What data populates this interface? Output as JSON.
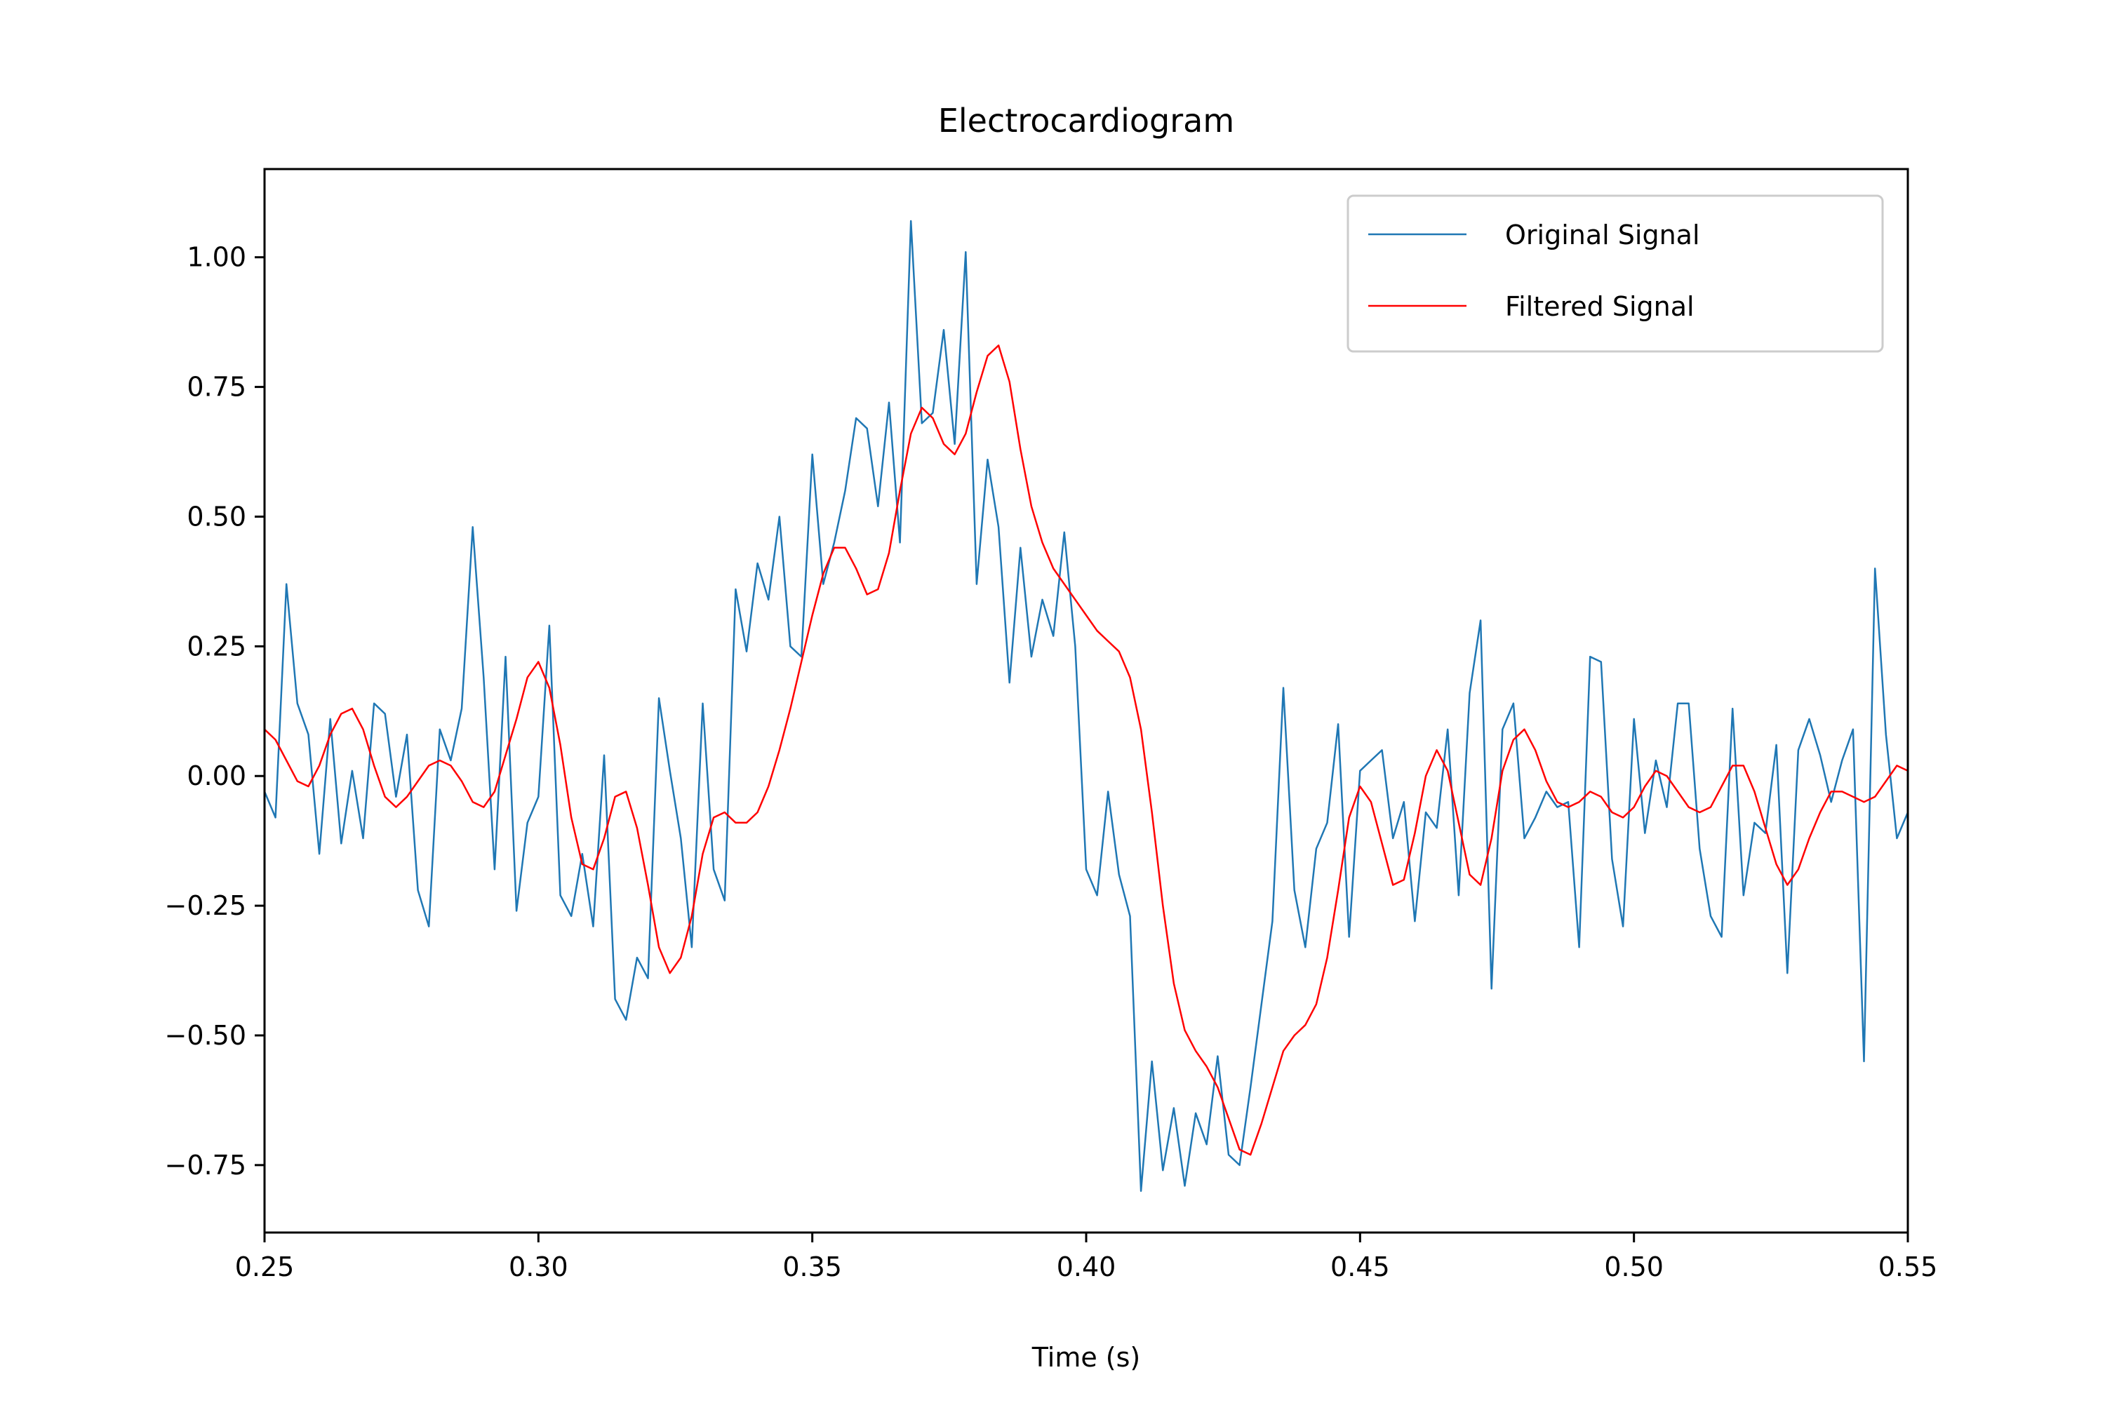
{
  "chart_data": {
    "type": "line",
    "title": "Electrocardiogram",
    "xlabel": "Time (s)",
    "ylabel": "",
    "xlim": [
      0.25,
      0.55
    ],
    "ylim": [
      -0.88,
      1.17
    ],
    "x_ticks": [
      0.25,
      0.3,
      0.35,
      0.4,
      0.45,
      0.5,
      0.55
    ],
    "x_tick_labels": [
      "0.25",
      "0.30",
      "0.35",
      "0.40",
      "0.45",
      "0.50",
      "0.55"
    ],
    "y_ticks": [
      1.0,
      0.75,
      0.5,
      0.25,
      0.0,
      -0.25,
      -0.5,
      -0.75
    ],
    "y_tick_labels": [
      "1.00",
      "0.75",
      "0.50",
      "0.25",
      "0.00",
      "−0.25",
      "−0.50",
      "−0.75"
    ],
    "grid": false,
    "legend_position": "top-right",
    "series": [
      {
        "name": "Original Signal",
        "color": "#1f77b4",
        "points": [
          [
            0.25,
            -0.03
          ],
          [
            0.252,
            -0.08
          ],
          [
            0.254,
            0.37
          ],
          [
            0.256,
            0.14
          ],
          [
            0.258,
            0.08
          ],
          [
            0.26,
            -0.15
          ],
          [
            0.262,
            0.11
          ],
          [
            0.264,
            -0.13
          ],
          [
            0.266,
            0.01
          ],
          [
            0.268,
            -0.12
          ],
          [
            0.27,
            0.14
          ],
          [
            0.272,
            0.12
          ],
          [
            0.274,
            -0.04
          ],
          [
            0.276,
            0.08
          ],
          [
            0.278,
            -0.22
          ],
          [
            0.28,
            -0.29
          ],
          [
            0.282,
            0.09
          ],
          [
            0.284,
            0.03
          ],
          [
            0.286,
            0.13
          ],
          [
            0.288,
            0.48
          ],
          [
            0.29,
            0.19
          ],
          [
            0.292,
            -0.18
          ],
          [
            0.294,
            0.23
          ],
          [
            0.296,
            -0.26
          ],
          [
            0.298,
            -0.09
          ],
          [
            0.3,
            -0.04
          ],
          [
            0.302,
            0.29
          ],
          [
            0.304,
            -0.23
          ],
          [
            0.306,
            -0.27
          ],
          [
            0.308,
            -0.15
          ],
          [
            0.31,
            -0.29
          ],
          [
            0.312,
            0.04
          ],
          [
            0.314,
            -0.43
          ],
          [
            0.316,
            -0.47
          ],
          [
            0.318,
            -0.35
          ],
          [
            0.32,
            -0.39
          ],
          [
            0.322,
            0.15
          ],
          [
            0.324,
            0.01
          ],
          [
            0.326,
            -0.12
          ],
          [
            0.328,
            -0.33
          ],
          [
            0.33,
            0.14
          ],
          [
            0.332,
            -0.18
          ],
          [
            0.334,
            -0.24
          ],
          [
            0.336,
            0.36
          ],
          [
            0.338,
            0.24
          ],
          [
            0.34,
            0.41
          ],
          [
            0.342,
            0.34
          ],
          [
            0.344,
            0.5
          ],
          [
            0.346,
            0.25
          ],
          [
            0.348,
            0.23
          ],
          [
            0.35,
            0.62
          ],
          [
            0.352,
            0.37
          ],
          [
            0.354,
            0.45
          ],
          [
            0.356,
            0.55
          ],
          [
            0.358,
            0.69
          ],
          [
            0.36,
            0.67
          ],
          [
            0.362,
            0.52
          ],
          [
            0.364,
            0.72
          ],
          [
            0.366,
            0.45
          ],
          [
            0.368,
            1.07
          ],
          [
            0.37,
            0.68
          ],
          [
            0.372,
            0.7
          ],
          [
            0.374,
            0.86
          ],
          [
            0.376,
            0.64
          ],
          [
            0.378,
            1.01
          ],
          [
            0.38,
            0.37
          ],
          [
            0.382,
            0.61
          ],
          [
            0.384,
            0.48
          ],
          [
            0.386,
            0.18
          ],
          [
            0.388,
            0.44
          ],
          [
            0.39,
            0.23
          ],
          [
            0.392,
            0.34
          ],
          [
            0.394,
            0.27
          ],
          [
            0.396,
            0.47
          ],
          [
            0.398,
            0.25
          ],
          [
            0.4,
            -0.18
          ],
          [
            0.402,
            -0.23
          ],
          [
            0.404,
            -0.03
          ],
          [
            0.406,
            -0.19
          ],
          [
            0.408,
            -0.27
          ],
          [
            0.41,
            -0.8
          ],
          [
            0.412,
            -0.55
          ],
          [
            0.414,
            -0.76
          ],
          [
            0.416,
            -0.64
          ],
          [
            0.418,
            -0.79
          ],
          [
            0.42,
            -0.65
          ],
          [
            0.422,
            -0.71
          ],
          [
            0.424,
            -0.54
          ],
          [
            0.426,
            -0.73
          ],
          [
            0.428,
            -0.75
          ],
          [
            0.43,
            -0.6
          ],
          [
            0.432,
            -0.44
          ],
          [
            0.434,
            -0.28
          ],
          [
            0.436,
            0.17
          ],
          [
            0.438,
            -0.22
          ],
          [
            0.44,
            -0.33
          ],
          [
            0.442,
            -0.14
          ],
          [
            0.444,
            -0.09
          ],
          [
            0.446,
            0.1
          ],
          [
            0.448,
            -0.31
          ],
          [
            0.45,
            0.01
          ],
          [
            0.452,
            0.03
          ],
          [
            0.454,
            0.05
          ],
          [
            0.456,
            -0.12
          ],
          [
            0.458,
            -0.05
          ],
          [
            0.46,
            -0.28
          ],
          [
            0.462,
            -0.07
          ],
          [
            0.464,
            -0.1
          ],
          [
            0.466,
            0.09
          ],
          [
            0.468,
            -0.23
          ],
          [
            0.47,
            0.16
          ],
          [
            0.472,
            0.3
          ],
          [
            0.474,
            -0.41
          ],
          [
            0.476,
            0.09
          ],
          [
            0.478,
            0.14
          ],
          [
            0.48,
            -0.12
          ],
          [
            0.482,
            -0.08
          ],
          [
            0.484,
            -0.03
          ],
          [
            0.486,
            -0.06
          ],
          [
            0.488,
            -0.05
          ],
          [
            0.49,
            -0.33
          ],
          [
            0.492,
            0.23
          ],
          [
            0.494,
            0.22
          ],
          [
            0.496,
            -0.16
          ],
          [
            0.498,
            -0.29
          ],
          [
            0.5,
            0.11
          ],
          [
            0.502,
            -0.11
          ],
          [
            0.504,
            0.03
          ],
          [
            0.506,
            -0.06
          ],
          [
            0.508,
            0.14
          ],
          [
            0.51,
            0.14
          ],
          [
            0.512,
            -0.14
          ],
          [
            0.514,
            -0.27
          ],
          [
            0.516,
            -0.31
          ],
          [
            0.518,
            0.13
          ],
          [
            0.52,
            -0.23
          ],
          [
            0.522,
            -0.09
          ],
          [
            0.524,
            -0.11
          ],
          [
            0.526,
            0.06
          ],
          [
            0.528,
            -0.38
          ],
          [
            0.53,
            0.05
          ],
          [
            0.532,
            0.11
          ],
          [
            0.534,
            0.04
          ],
          [
            0.536,
            -0.05
          ],
          [
            0.538,
            0.03
          ],
          [
            0.54,
            0.09
          ],
          [
            0.542,
            -0.55
          ],
          [
            0.544,
            0.4
          ],
          [
            0.546,
            0.08
          ],
          [
            0.548,
            -0.12
          ],
          [
            0.55,
            -0.07
          ]
        ]
      },
      {
        "name": "Filtered Signal",
        "color": "#ff0000",
        "points": [
          [
            0.25,
            0.09
          ],
          [
            0.252,
            0.07
          ],
          [
            0.254,
            0.03
          ],
          [
            0.256,
            -0.01
          ],
          [
            0.258,
            -0.02
          ],
          [
            0.26,
            0.02
          ],
          [
            0.262,
            0.08
          ],
          [
            0.264,
            0.12
          ],
          [
            0.266,
            0.13
          ],
          [
            0.268,
            0.09
          ],
          [
            0.27,
            0.02
          ],
          [
            0.272,
            -0.04
          ],
          [
            0.274,
            -0.06
          ],
          [
            0.276,
            -0.04
          ],
          [
            0.278,
            -0.01
          ],
          [
            0.28,
            0.02
          ],
          [
            0.282,
            0.03
          ],
          [
            0.284,
            0.02
          ],
          [
            0.286,
            -0.01
          ],
          [
            0.288,
            -0.05
          ],
          [
            0.29,
            -0.06
          ],
          [
            0.292,
            -0.03
          ],
          [
            0.294,
            0.04
          ],
          [
            0.296,
            0.11
          ],
          [
            0.298,
            0.19
          ],
          [
            0.3,
            0.22
          ],
          [
            0.302,
            0.17
          ],
          [
            0.304,
            0.06
          ],
          [
            0.306,
            -0.08
          ],
          [
            0.308,
            -0.17
          ],
          [
            0.31,
            -0.18
          ],
          [
            0.312,
            -0.12
          ],
          [
            0.314,
            -0.04
          ],
          [
            0.316,
            -0.03
          ],
          [
            0.318,
            -0.1
          ],
          [
            0.32,
            -0.21
          ],
          [
            0.322,
            -0.33
          ],
          [
            0.324,
            -0.38
          ],
          [
            0.326,
            -0.35
          ],
          [
            0.328,
            -0.27
          ],
          [
            0.33,
            -0.15
          ],
          [
            0.332,
            -0.08
          ],
          [
            0.334,
            -0.07
          ],
          [
            0.336,
            -0.09
          ],
          [
            0.338,
            -0.09
          ],
          [
            0.34,
            -0.07
          ],
          [
            0.342,
            -0.02
          ],
          [
            0.344,
            0.05
          ],
          [
            0.346,
            0.13
          ],
          [
            0.348,
            0.22
          ],
          [
            0.35,
            0.31
          ],
          [
            0.352,
            0.39
          ],
          [
            0.354,
            0.44
          ],
          [
            0.356,
            0.44
          ],
          [
            0.358,
            0.4
          ],
          [
            0.36,
            0.35
          ],
          [
            0.362,
            0.36
          ],
          [
            0.364,
            0.43
          ],
          [
            0.366,
            0.55
          ],
          [
            0.368,
            0.66
          ],
          [
            0.37,
            0.71
          ],
          [
            0.372,
            0.69
          ],
          [
            0.374,
            0.64
          ],
          [
            0.376,
            0.62
          ],
          [
            0.378,
            0.66
          ],
          [
            0.38,
            0.74
          ],
          [
            0.382,
            0.81
          ],
          [
            0.384,
            0.83
          ],
          [
            0.386,
            0.76
          ],
          [
            0.388,
            0.63
          ],
          [
            0.39,
            0.52
          ],
          [
            0.392,
            0.45
          ],
          [
            0.394,
            0.4
          ],
          [
            0.396,
            0.37
          ],
          [
            0.398,
            0.34
          ],
          [
            0.4,
            0.31
          ],
          [
            0.402,
            0.28
          ],
          [
            0.404,
            0.26
          ],
          [
            0.406,
            0.24
          ],
          [
            0.408,
            0.19
          ],
          [
            0.41,
            0.09
          ],
          [
            0.412,
            -0.07
          ],
          [
            0.414,
            -0.25
          ],
          [
            0.416,
            -0.4
          ],
          [
            0.418,
            -0.49
          ],
          [
            0.42,
            -0.53
          ],
          [
            0.422,
            -0.56
          ],
          [
            0.424,
            -0.6
          ],
          [
            0.426,
            -0.66
          ],
          [
            0.428,
            -0.72
          ],
          [
            0.43,
            -0.73
          ],
          [
            0.432,
            -0.67
          ],
          [
            0.434,
            -0.6
          ],
          [
            0.436,
            -0.53
          ],
          [
            0.438,
            -0.5
          ],
          [
            0.44,
            -0.48
          ],
          [
            0.442,
            -0.44
          ],
          [
            0.444,
            -0.35
          ],
          [
            0.446,
            -0.22
          ],
          [
            0.448,
            -0.08
          ],
          [
            0.45,
            -0.02
          ],
          [
            0.452,
            -0.05
          ],
          [
            0.454,
            -0.13
          ],
          [
            0.456,
            -0.21
          ],
          [
            0.458,
            -0.2
          ],
          [
            0.46,
            -0.11
          ],
          [
            0.462,
            0.0
          ],
          [
            0.464,
            0.05
          ],
          [
            0.466,
            0.01
          ],
          [
            0.468,
            -0.09
          ],
          [
            0.47,
            -0.19
          ],
          [
            0.472,
            -0.21
          ],
          [
            0.474,
            -0.12
          ],
          [
            0.476,
            0.01
          ],
          [
            0.478,
            0.07
          ],
          [
            0.48,
            0.09
          ],
          [
            0.482,
            0.05
          ],
          [
            0.484,
            -0.01
          ],
          [
            0.486,
            -0.05
          ],
          [
            0.488,
            -0.06
          ],
          [
            0.49,
            -0.05
          ],
          [
            0.492,
            -0.03
          ],
          [
            0.494,
            -0.04
          ],
          [
            0.496,
            -0.07
          ],
          [
            0.498,
            -0.08
          ],
          [
            0.5,
            -0.06
          ],
          [
            0.502,
            -0.02
          ],
          [
            0.504,
            0.01
          ],
          [
            0.506,
            0.0
          ],
          [
            0.508,
            -0.03
          ],
          [
            0.51,
            -0.06
          ],
          [
            0.512,
            -0.07
          ],
          [
            0.514,
            -0.06
          ],
          [
            0.516,
            -0.02
          ],
          [
            0.518,
            0.02
          ],
          [
            0.52,
            0.02
          ],
          [
            0.522,
            -0.03
          ],
          [
            0.524,
            -0.1
          ],
          [
            0.526,
            -0.17
          ],
          [
            0.528,
            -0.21
          ],
          [
            0.53,
            -0.18
          ],
          [
            0.532,
            -0.12
          ],
          [
            0.534,
            -0.07
          ],
          [
            0.536,
            -0.03
          ],
          [
            0.538,
            -0.03
          ],
          [
            0.54,
            -0.04
          ],
          [
            0.542,
            -0.05
          ],
          [
            0.544,
            -0.04
          ],
          [
            0.546,
            -0.01
          ],
          [
            0.548,
            0.02
          ],
          [
            0.55,
            0.01
          ]
        ]
      }
    ]
  }
}
